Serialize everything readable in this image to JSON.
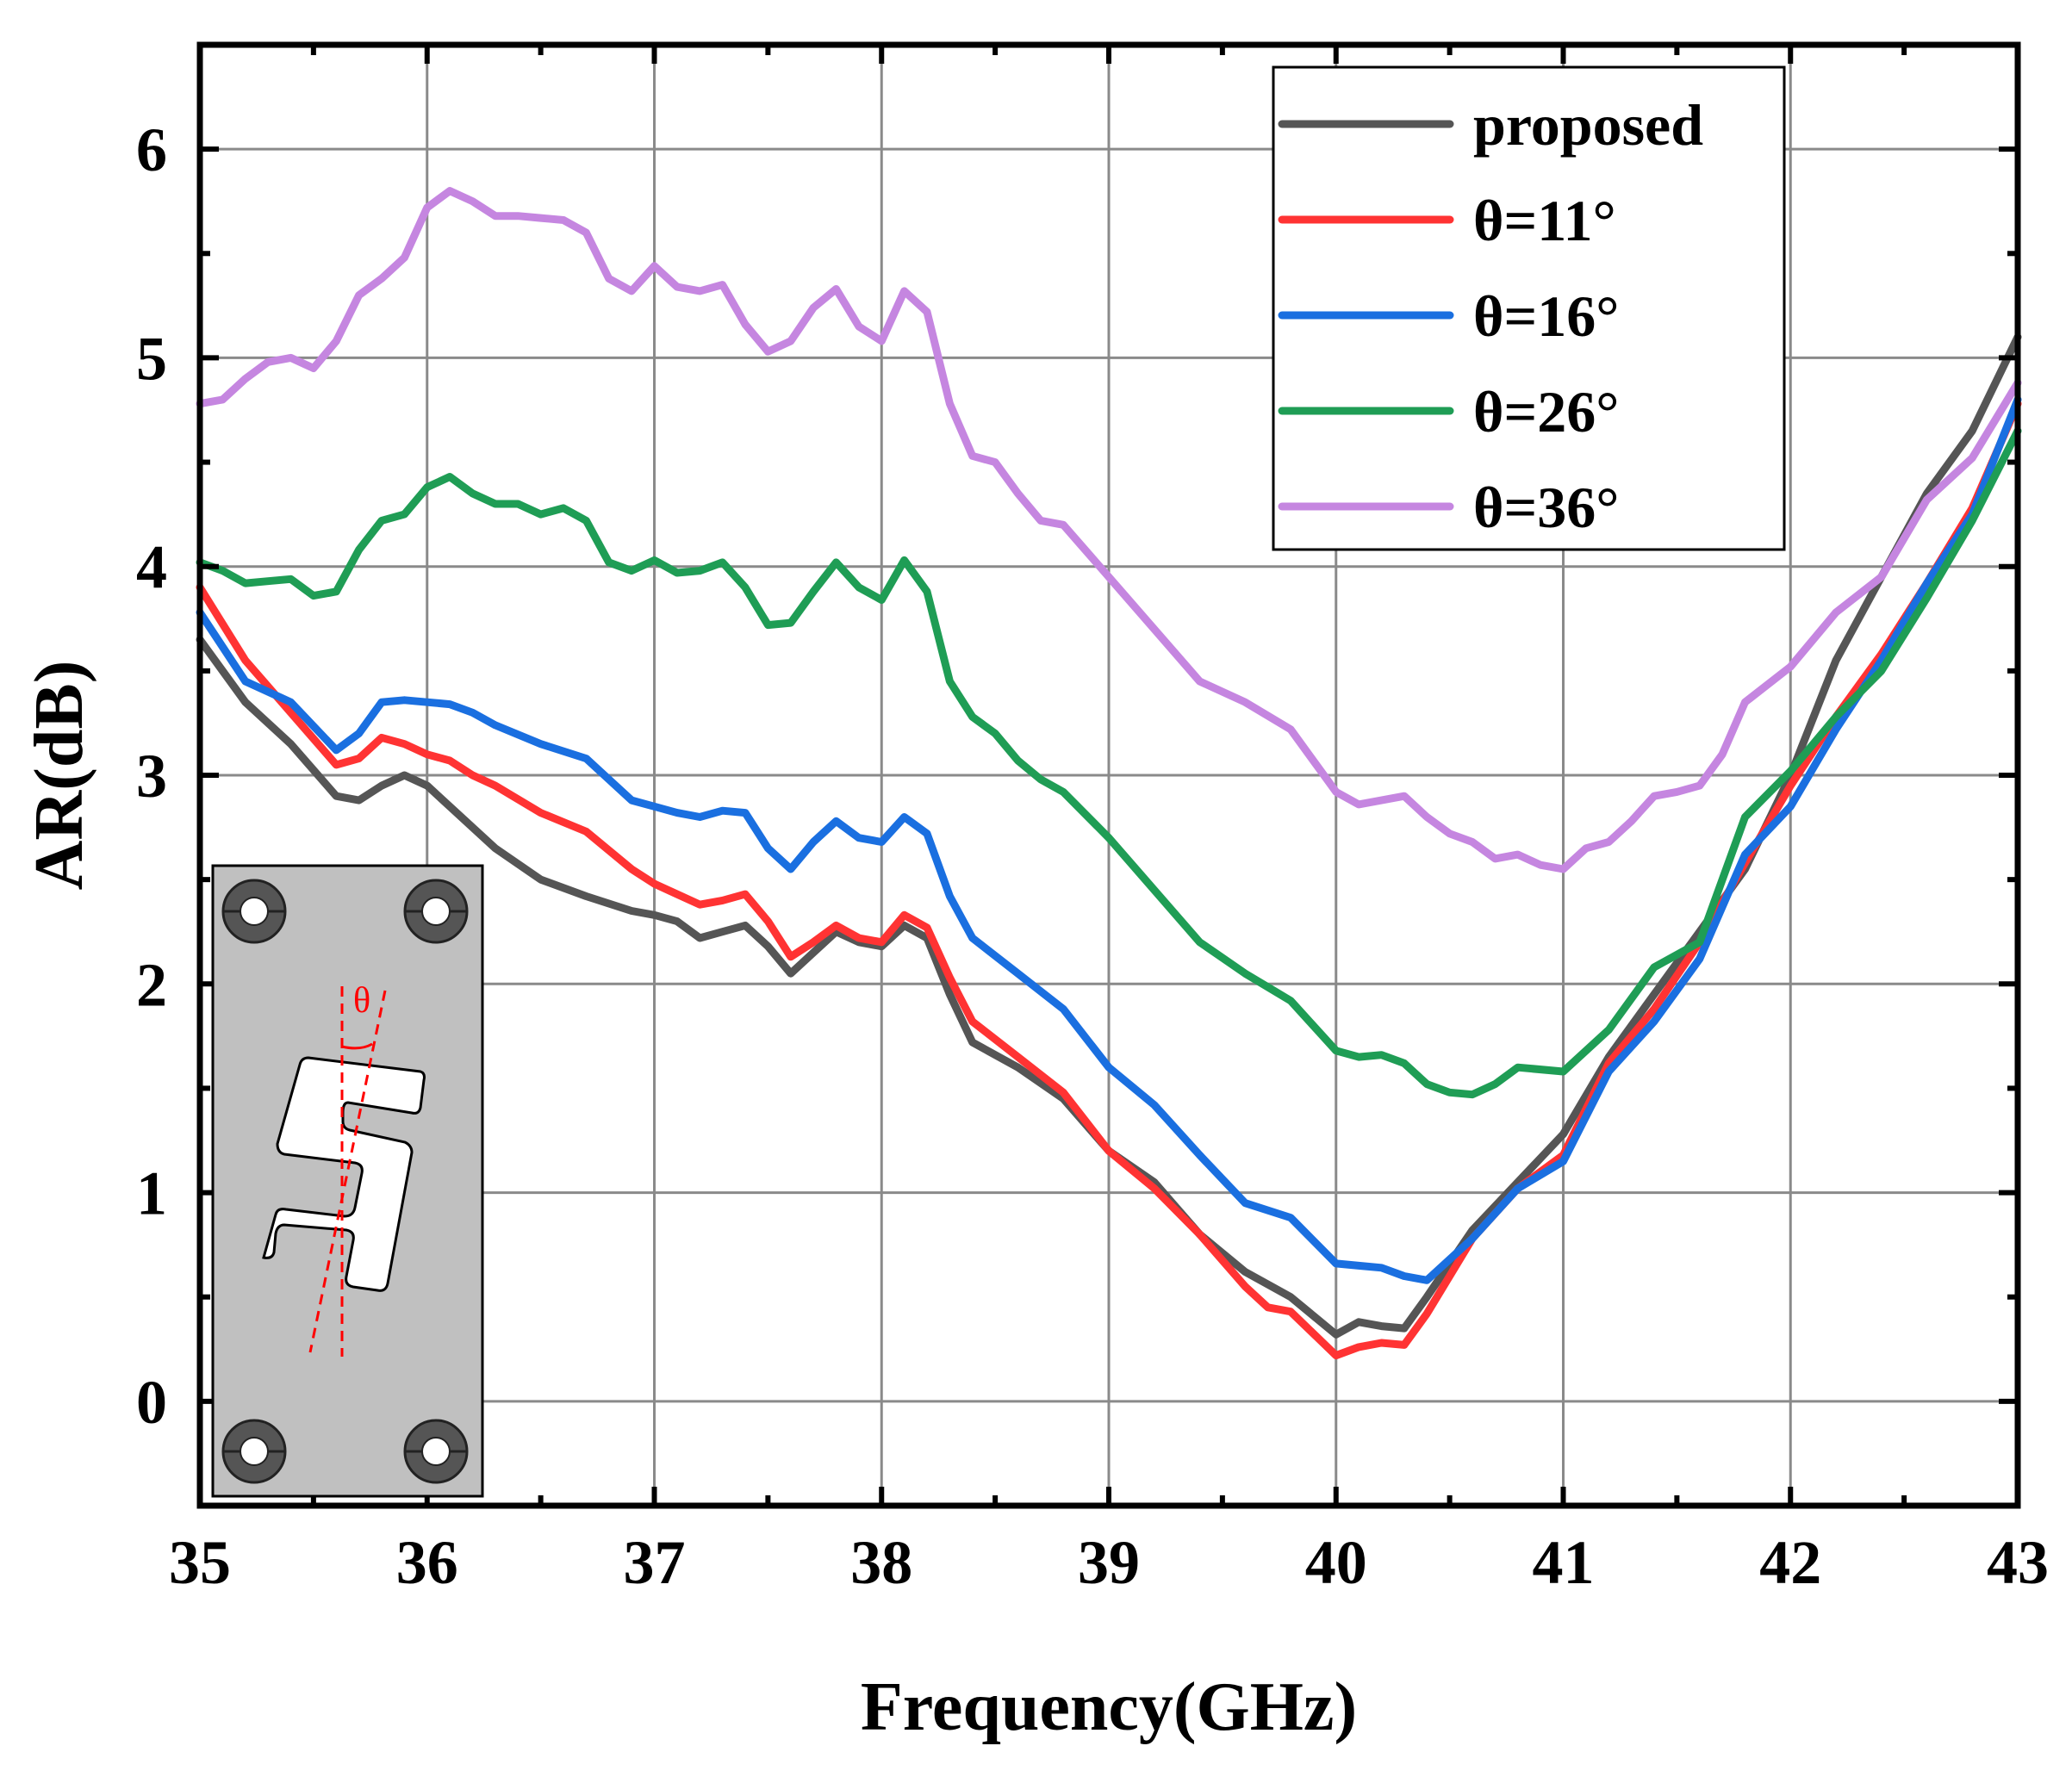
{
  "chart_data": {
    "type": "line",
    "title": "",
    "xlabel": "Frequency(GHz)",
    "ylabel": "AR(dB)",
    "xlim": [
      35,
      43
    ],
    "ylim": [
      -0.5,
      6.5
    ],
    "xticks": [
      35,
      36,
      37,
      38,
      39,
      40,
      41,
      42,
      43
    ],
    "yticks": [
      0,
      1,
      2,
      3,
      4,
      5,
      6
    ],
    "xtick_labels": [
      "35",
      "36",
      "37",
      "38",
      "39",
      "40",
      "41",
      "42",
      "43"
    ],
    "ytick_labels": [
      "0",
      "1",
      "2",
      "3",
      "4",
      "5",
      "6"
    ],
    "grid": true,
    "legend_position": "top-right",
    "series": [
      {
        "name": "proposed",
        "color": "#555555",
        "x": [
          35.0,
          35.2,
          35.4,
          35.6,
          35.7,
          35.8,
          35.9,
          36.0,
          36.1,
          36.3,
          36.5,
          36.7,
          36.9,
          37.0,
          37.1,
          37.2,
          37.3,
          37.4,
          37.5,
          37.6,
          37.7,
          37.8,
          37.9,
          38.0,
          38.1,
          38.2,
          38.3,
          38.4,
          38.6,
          38.8,
          39.0,
          39.2,
          39.4,
          39.6,
          39.8,
          40.0,
          40.1,
          40.2,
          40.3,
          40.4,
          40.6,
          40.8,
          41.0,
          41.2,
          41.4,
          41.6,
          41.8,
          42.0,
          42.2,
          42.4,
          42.6,
          42.8,
          43.0
        ],
        "y": [
          3.65,
          3.35,
          3.15,
          2.9,
          2.88,
          2.95,
          3.0,
          2.95,
          2.85,
          2.65,
          2.5,
          2.42,
          2.35,
          2.33,
          2.3,
          2.22,
          2.25,
          2.28,
          2.18,
          2.05,
          2.15,
          2.25,
          2.2,
          2.18,
          2.28,
          2.22,
          1.95,
          1.72,
          1.6,
          1.45,
          1.2,
          1.05,
          0.8,
          0.62,
          0.5,
          0.32,
          0.38,
          0.36,
          0.35,
          0.5,
          0.82,
          1.05,
          1.28,
          1.65,
          1.95,
          2.25,
          2.55,
          3.0,
          3.55,
          3.95,
          4.35,
          4.65,
          5.1
        ]
      },
      {
        "name": "θ=11°",
        "color": "#ff3333",
        "x": [
          35.0,
          35.2,
          35.4,
          35.6,
          35.7,
          35.8,
          35.9,
          36.0,
          36.1,
          36.2,
          36.3,
          36.5,
          36.7,
          36.9,
          37.0,
          37.1,
          37.2,
          37.3,
          37.4,
          37.5,
          37.6,
          37.7,
          37.8,
          37.9,
          38.0,
          38.1,
          38.2,
          38.3,
          38.4,
          38.6,
          38.8,
          39.0,
          39.2,
          39.4,
          39.6,
          39.7,
          39.8,
          40.0,
          40.1,
          40.2,
          40.3,
          40.4,
          40.6,
          40.8,
          41.0,
          41.2,
          41.4,
          41.6,
          41.8,
          42.0,
          42.2,
          42.4,
          42.6,
          42.8,
          43.0
        ],
        "y": [
          3.9,
          3.55,
          3.3,
          3.05,
          3.08,
          3.18,
          3.15,
          3.1,
          3.07,
          3.0,
          2.95,
          2.82,
          2.73,
          2.55,
          2.48,
          2.43,
          2.38,
          2.4,
          2.43,
          2.3,
          2.13,
          2.2,
          2.28,
          2.22,
          2.2,
          2.33,
          2.27,
          2.03,
          1.82,
          1.65,
          1.48,
          1.2,
          1.02,
          0.8,
          0.55,
          0.45,
          0.43,
          0.22,
          0.26,
          0.28,
          0.27,
          0.42,
          0.78,
          1.02,
          1.18,
          1.62,
          1.88,
          2.2,
          2.58,
          2.95,
          3.28,
          3.58,
          3.92,
          4.28,
          4.78
        ]
      },
      {
        "name": "θ=16°",
        "color": "#1a6fe0",
        "x": [
          35.0,
          35.2,
          35.4,
          35.6,
          35.7,
          35.8,
          35.9,
          36.0,
          36.1,
          36.2,
          36.3,
          36.5,
          36.7,
          36.9,
          37.0,
          37.1,
          37.2,
          37.3,
          37.4,
          37.5,
          37.6,
          37.7,
          37.8,
          37.9,
          38.0,
          38.1,
          38.2,
          38.3,
          38.4,
          38.6,
          38.8,
          39.0,
          39.2,
          39.4,
          39.6,
          39.8,
          40.0,
          40.1,
          40.2,
          40.3,
          40.4,
          40.6,
          40.8,
          41.0,
          41.2,
          41.4,
          41.6,
          41.8,
          42.0,
          42.2,
          42.4,
          42.6,
          42.8,
          43.0
        ],
        "y": [
          3.78,
          3.45,
          3.35,
          3.12,
          3.2,
          3.35,
          3.36,
          3.35,
          3.34,
          3.3,
          3.24,
          3.15,
          3.08,
          2.88,
          2.85,
          2.82,
          2.8,
          2.83,
          2.82,
          2.65,
          2.55,
          2.68,
          2.78,
          2.7,
          2.68,
          2.8,
          2.72,
          2.42,
          2.22,
          2.05,
          1.88,
          1.6,
          1.42,
          1.18,
          0.95,
          0.88,
          0.66,
          0.65,
          0.64,
          0.6,
          0.58,
          0.78,
          1.02,
          1.15,
          1.58,
          1.82,
          2.12,
          2.62,
          2.85,
          3.22,
          3.55,
          3.92,
          4.25,
          4.8
        ]
      },
      {
        "name": "θ=26°",
        "color": "#1f9d55",
        "x": [
          35.0,
          35.1,
          35.2,
          35.3,
          35.4,
          35.5,
          35.6,
          35.7,
          35.8,
          35.9,
          36.0,
          36.1,
          36.2,
          36.3,
          36.4,
          36.5,
          36.6,
          36.7,
          36.8,
          36.9,
          37.0,
          37.1,
          37.2,
          37.3,
          37.4,
          37.5,
          37.6,
          37.7,
          37.8,
          37.9,
          38.0,
          38.1,
          38.2,
          38.3,
          38.4,
          38.5,
          38.6,
          38.7,
          38.8,
          39.0,
          39.2,
          39.4,
          39.6,
          39.8,
          40.0,
          40.1,
          40.2,
          40.3,
          40.4,
          40.5,
          40.6,
          40.7,
          40.8,
          41.0,
          41.2,
          41.4,
          41.6,
          41.8,
          42.0,
          42.2,
          42.4,
          42.6,
          42.8,
          43.0
        ],
        "y": [
          4.02,
          3.98,
          3.92,
          3.93,
          3.94,
          3.86,
          3.88,
          4.08,
          4.22,
          4.25,
          4.38,
          4.43,
          4.35,
          4.3,
          4.3,
          4.25,
          4.28,
          4.22,
          4.02,
          3.98,
          4.03,
          3.97,
          3.98,
          4.02,
          3.9,
          3.72,
          3.73,
          3.88,
          4.02,
          3.9,
          3.84,
          4.03,
          3.88,
          3.45,
          3.28,
          3.2,
          3.07,
          2.98,
          2.92,
          2.7,
          2.45,
          2.2,
          2.05,
          1.92,
          1.68,
          1.65,
          1.66,
          1.62,
          1.52,
          1.48,
          1.47,
          1.52,
          1.6,
          1.58,
          1.78,
          2.08,
          2.2,
          2.8,
          3.02,
          3.28,
          3.5,
          3.85,
          4.22,
          4.65
        ]
      },
      {
        "name": "θ=36°",
        "color": "#c586e0",
        "x": [
          35.0,
          35.1,
          35.2,
          35.3,
          35.4,
          35.5,
          35.6,
          35.7,
          35.8,
          35.9,
          36.0,
          36.1,
          36.2,
          36.3,
          36.4,
          36.5,
          36.6,
          36.7,
          36.8,
          36.9,
          37.0,
          37.1,
          37.2,
          37.3,
          37.4,
          37.5,
          37.6,
          37.7,
          37.8,
          37.9,
          38.0,
          38.1,
          38.2,
          38.3,
          38.4,
          38.5,
          38.6,
          38.7,
          38.8,
          39.0,
          39.2,
          39.4,
          39.6,
          39.8,
          40.0,
          40.1,
          40.2,
          40.3,
          40.4,
          40.5,
          40.6,
          40.7,
          40.8,
          40.9,
          41.0,
          41.1,
          41.2,
          41.3,
          41.4,
          41.5,
          41.6,
          41.7,
          41.8,
          42.0,
          42.2,
          42.4,
          42.6,
          42.8,
          43.0
        ],
        "y": [
          4.78,
          4.8,
          4.9,
          4.98,
          5.0,
          4.95,
          5.08,
          5.3,
          5.38,
          5.48,
          5.72,
          5.8,
          5.75,
          5.68,
          5.68,
          5.67,
          5.66,
          5.6,
          5.38,
          5.32,
          5.44,
          5.34,
          5.32,
          5.35,
          5.16,
          5.03,
          5.08,
          5.24,
          5.33,
          5.15,
          5.08,
          5.32,
          5.22,
          4.78,
          4.53,
          4.5,
          4.35,
          4.22,
          4.2,
          3.95,
          3.7,
          3.45,
          3.35,
          3.22,
          2.92,
          2.86,
          2.88,
          2.9,
          2.8,
          2.72,
          2.68,
          2.6,
          2.62,
          2.57,
          2.55,
          2.65,
          2.68,
          2.78,
          2.9,
          2.92,
          2.95,
          3.1,
          3.35,
          3.52,
          3.78,
          3.95,
          4.32,
          4.52,
          4.88
        ]
      }
    ]
  },
  "inset": {
    "angle_symbol": "θ"
  }
}
